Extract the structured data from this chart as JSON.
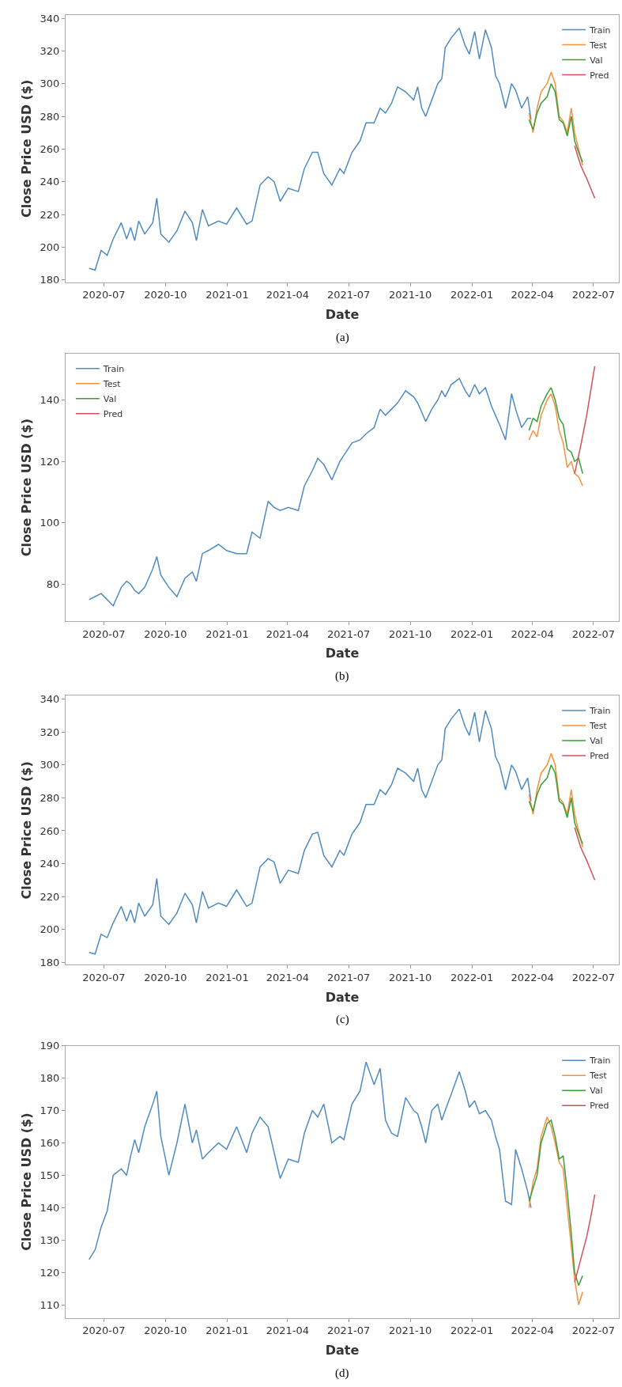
{
  "chart_data": [
    {
      "type": "line",
      "xlabel": "Date",
      "ylabel": "Close Price USD ($)",
      "annotations": [
        "(a)"
      ],
      "legend": "top right",
      "grid": false,
      "xlim": [
        "2020-05-05",
        "2022-08-08"
      ],
      "xticks": [
        {
          "value": "2020-07-01",
          "label": "2020-07"
        },
        {
          "value": "2020-10-01",
          "label": "2020-10"
        },
        {
          "value": "2021-01-01",
          "label": "2021-01"
        },
        {
          "value": "2021-04-01",
          "label": "2021-04"
        },
        {
          "value": "2021-07-01",
          "label": "2021-07"
        },
        {
          "value": "2021-10-01",
          "label": "2021-10"
        },
        {
          "value": "2022-01-01",
          "label": "2022-01"
        },
        {
          "value": "2022-04-01",
          "label": "2022-04"
        },
        {
          "value": "2022-07-01",
          "label": "2022-07"
        }
      ],
      "ylim": [
        178.5,
        342
      ],
      "yticks": [
        180,
        200,
        220,
        240,
        260,
        280,
        300,
        320,
        340
      ],
      "series": [
        {
          "name": "Train",
          "color": "#4f8bbf",
          "x": [
            "2020-06-09",
            "2020-06-18",
            "2020-06-27",
            "2020-07-06",
            "2020-07-15",
            "2020-07-27",
            "2020-08-04",
            "2020-08-10",
            "2020-08-16",
            "2020-08-22",
            "2020-08-31",
            "2020-09-12",
            "2020-09-18",
            "2020-09-24",
            "2020-10-06",
            "2020-10-18",
            "2020-10-30",
            "2020-11-10",
            "2020-11-16",
            "2020-11-25",
            "2020-12-04",
            "2020-12-19",
            "2020-12-31",
            "2021-01-15",
            "2021-01-30",
            "2021-02-07",
            "2021-02-19",
            "2021-03-03",
            "2021-03-12",
            "2021-03-21",
            "2021-04-02",
            "2021-04-17",
            "2021-04-26",
            "2021-05-08",
            "2021-05-16",
            "2021-05-25",
            "2021-06-06",
            "2021-06-18",
            "2021-06-24",
            "2021-07-06",
            "2021-07-18",
            "2021-07-27",
            "2021-08-08",
            "2021-08-17",
            "2021-08-25",
            "2021-09-03",
            "2021-09-12",
            "2021-09-24",
            "2021-10-06",
            "2021-10-12",
            "2021-10-18",
            "2021-10-24",
            "2021-11-02",
            "2021-11-11",
            "2021-11-17",
            "2021-11-22",
            "2021-12-01",
            "2021-12-13",
            "2021-12-22",
            "2021-12-28",
            "2022-01-05",
            "2022-01-12",
            "2022-01-21",
            "2022-01-30",
            "2022-02-05",
            "2022-02-11",
            "2022-02-20",
            "2022-03-01",
            "2022-03-07",
            "2022-03-16",
            "2022-03-25",
            "2022-03-30"
          ],
          "values": [
            187,
            186,
            198,
            195,
            205,
            215,
            205,
            212,
            204,
            216,
            208,
            215,
            230,
            208,
            203,
            210,
            222,
            215,
            204,
            223,
            213,
            216,
            214,
            224,
            214,
            216,
            238,
            243,
            240,
            228,
            236,
            234,
            248,
            258,
            258,
            245,
            238,
            248,
            245,
            258,
            265,
            276,
            276,
            285,
            282,
            288,
            298,
            295,
            290,
            298,
            285,
            280,
            290,
            300,
            303,
            322,
            328,
            334,
            323,
            318,
            332,
            315,
            333,
            322,
            305,
            300,
            285,
            300,
            296,
            285,
            292,
            278
          ]
        },
        {
          "name": "Test",
          "color": "#f5923e",
          "x": [
            "2022-03-27",
            "2022-04-02",
            "2022-04-08",
            "2022-04-14",
            "2022-04-23",
            "2022-04-29",
            "2022-05-05",
            "2022-05-11",
            "2022-05-17",
            "2022-05-23",
            "2022-05-29",
            "2022-06-03",
            "2022-06-09",
            "2022-06-15"
          ],
          "values": [
            282,
            270,
            285,
            295,
            300,
            307,
            300,
            280,
            277,
            270,
            285,
            270,
            260,
            250
          ]
        },
        {
          "name": "Val",
          "color": "#3a9e3a",
          "x": [
            "2022-03-27",
            "2022-04-02",
            "2022-04-08",
            "2022-04-14",
            "2022-04-23",
            "2022-04-29",
            "2022-05-05",
            "2022-05-11",
            "2022-05-17",
            "2022-05-23",
            "2022-05-29",
            "2022-06-03",
            "2022-06-09",
            "2022-06-15"
          ],
          "values": [
            278,
            272,
            282,
            288,
            292,
            300,
            295,
            278,
            276,
            268,
            280,
            265,
            258,
            252
          ]
        },
        {
          "name": "Pred",
          "color": "#d0525a",
          "x": [
            "2022-06-03",
            "2022-06-12",
            "2022-06-21",
            "2022-06-27",
            "2022-07-03"
          ],
          "values": [
            262,
            250,
            242,
            236,
            230
          ]
        }
      ]
    },
    {
      "type": "line",
      "xlabel": "Date",
      "ylabel": "Close Price USD ($)",
      "annotations": [
        "(b)"
      ],
      "legend": "top left",
      "grid": false,
      "xlim": [
        "2020-05-05",
        "2022-08-08"
      ],
      "xticks": [
        {
          "value": "2020-07-01",
          "label": "2020-07"
        },
        {
          "value": "2020-10-01",
          "label": "2020-10"
        },
        {
          "value": "2021-01-01",
          "label": "2021-01"
        },
        {
          "value": "2021-04-01",
          "label": "2021-04"
        },
        {
          "value": "2021-07-01",
          "label": "2021-07"
        },
        {
          "value": "2021-10-01",
          "label": "2021-10"
        },
        {
          "value": "2022-01-01",
          "label": "2022-01"
        },
        {
          "value": "2022-04-01",
          "label": "2022-04"
        },
        {
          "value": "2022-07-01",
          "label": "2022-07"
        }
      ],
      "ylim": [
        68,
        155
      ],
      "yticks": [
        80,
        100,
        120,
        140
      ],
      "series": [
        {
          "name": "Train",
          "color": "#4f8bbf",
          "x": [
            "2020-06-09",
            "2020-06-18",
            "2020-06-27",
            "2020-07-06",
            "2020-07-15",
            "2020-07-27",
            "2020-08-04",
            "2020-08-10",
            "2020-08-16",
            "2020-08-22",
            "2020-08-31",
            "2020-09-12",
            "2020-09-18",
            "2020-09-24",
            "2020-10-06",
            "2020-10-18",
            "2020-10-30",
            "2020-11-10",
            "2020-11-16",
            "2020-11-25",
            "2020-12-04",
            "2020-12-19",
            "2020-12-31",
            "2021-01-15",
            "2021-01-30",
            "2021-02-07",
            "2021-02-19",
            "2021-03-03",
            "2021-03-12",
            "2021-03-21",
            "2021-04-02",
            "2021-04-17",
            "2021-04-26",
            "2021-05-08",
            "2021-05-16",
            "2021-05-25",
            "2021-06-06",
            "2021-06-18",
            "2021-06-24",
            "2021-07-06",
            "2021-07-18",
            "2021-07-27",
            "2021-08-08",
            "2021-08-17",
            "2021-08-25",
            "2021-09-03",
            "2021-09-12",
            "2021-09-24",
            "2021-10-06",
            "2021-10-12",
            "2021-10-18",
            "2021-10-24",
            "2021-11-02",
            "2021-11-11",
            "2021-11-17",
            "2021-11-22",
            "2021-12-01",
            "2021-12-13",
            "2021-12-22",
            "2021-12-28",
            "2022-01-05",
            "2022-01-12",
            "2022-01-21",
            "2022-01-30",
            "2022-02-05",
            "2022-02-11",
            "2022-02-20",
            "2022-03-01",
            "2022-03-07",
            "2022-03-16",
            "2022-03-25",
            "2022-03-30"
          ],
          "values": [
            75,
            76,
            77,
            75,
            73,
            79,
            81,
            80,
            78,
            77,
            79,
            85,
            89,
            83,
            79,
            76,
            82,
            84,
            81,
            90,
            91,
            93,
            91,
            90,
            90,
            97,
            95,
            107,
            105,
            104,
            105,
            104,
            112,
            117,
            121,
            119,
            114,
            120,
            122,
            126,
            127,
            129,
            131,
            137,
            135,
            137,
            139,
            143,
            141,
            139,
            136,
            133,
            137,
            140,
            143,
            141,
            145,
            147,
            143,
            141,
            145,
            142,
            144,
            138,
            135,
            132,
            127,
            142,
            137,
            131,
            134,
            134
          ]
        },
        {
          "name": "Test",
          "color": "#f5923e",
          "x": [
            "2022-03-27",
            "2022-04-02",
            "2022-04-08",
            "2022-04-14",
            "2022-04-23",
            "2022-04-29",
            "2022-05-05",
            "2022-05-11",
            "2022-05-17",
            "2022-05-23",
            "2022-05-29",
            "2022-06-03",
            "2022-06-09",
            "2022-06-15"
          ],
          "values": [
            127,
            130,
            128,
            135,
            140,
            142,
            138,
            130,
            126,
            118,
            120,
            116,
            115,
            112
          ]
        },
        {
          "name": "Val",
          "color": "#3a9e3a",
          "x": [
            "2022-03-27",
            "2022-04-02",
            "2022-04-08",
            "2022-04-14",
            "2022-04-23",
            "2022-04-29",
            "2022-05-05",
            "2022-05-11",
            "2022-05-17",
            "2022-05-23",
            "2022-05-29",
            "2022-06-03",
            "2022-06-09",
            "2022-06-15"
          ],
          "values": [
            130,
            134,
            133,
            138,
            142,
            144,
            140,
            134,
            132,
            124,
            123,
            120,
            121,
            116
          ]
        },
        {
          "name": "Pred",
          "color": "#d0525a",
          "x": [
            "2022-06-03",
            "2022-06-12",
            "2022-06-21",
            "2022-06-27",
            "2022-07-03"
          ],
          "values": [
            116,
            125,
            135,
            143,
            151
          ]
        }
      ]
    },
    {
      "type": "line",
      "xlabel": "Date",
      "ylabel": "Close Price USD ($)",
      "annotations": [
        "(c)"
      ],
      "legend": "top right",
      "grid": false,
      "xlim": [
        "2020-05-05",
        "2022-08-08"
      ],
      "xticks": [
        {
          "value": "2020-07-01",
          "label": "2020-07"
        },
        {
          "value": "2020-10-01",
          "label": "2020-10"
        },
        {
          "value": "2021-01-01",
          "label": "2021-01"
        },
        {
          "value": "2021-04-01",
          "label": "2021-04"
        },
        {
          "value": "2021-07-01",
          "label": "2021-07"
        },
        {
          "value": "2021-10-01",
          "label": "2021-10"
        },
        {
          "value": "2022-01-01",
          "label": "2022-01"
        },
        {
          "value": "2022-04-01",
          "label": "2022-04"
        },
        {
          "value": "2022-07-01",
          "label": "2022-07"
        }
      ],
      "ylim": [
        178.5,
        342
      ],
      "yticks": [
        180,
        200,
        220,
        240,
        260,
        280,
        300,
        320,
        340
      ],
      "series": [
        {
          "name": "Train",
          "color": "#4f8bbf",
          "x": [
            "2020-06-09",
            "2020-06-18",
            "2020-06-27",
            "2020-07-06",
            "2020-07-15",
            "2020-07-27",
            "2020-08-04",
            "2020-08-10",
            "2020-08-16",
            "2020-08-22",
            "2020-08-31",
            "2020-09-12",
            "2020-09-18",
            "2020-09-24",
            "2020-10-06",
            "2020-10-18",
            "2020-10-30",
            "2020-11-10",
            "2020-11-16",
            "2020-11-25",
            "2020-12-04",
            "2020-12-19",
            "2020-12-31",
            "2021-01-15",
            "2021-01-30",
            "2021-02-07",
            "2021-02-19",
            "2021-03-03",
            "2021-03-12",
            "2021-03-21",
            "2021-04-02",
            "2021-04-17",
            "2021-04-26",
            "2021-05-08",
            "2021-05-16",
            "2021-05-25",
            "2021-06-06",
            "2021-06-18",
            "2021-06-24",
            "2021-07-06",
            "2021-07-18",
            "2021-07-27",
            "2021-08-08",
            "2021-08-17",
            "2021-08-25",
            "2021-09-03",
            "2021-09-12",
            "2021-09-24",
            "2021-10-06",
            "2021-10-12",
            "2021-10-18",
            "2021-10-24",
            "2021-11-02",
            "2021-11-11",
            "2021-11-17",
            "2021-11-22",
            "2021-12-01",
            "2021-12-13",
            "2021-12-22",
            "2021-12-28",
            "2022-01-05",
            "2022-01-12",
            "2022-01-21",
            "2022-01-30",
            "2022-02-05",
            "2022-02-11",
            "2022-02-20",
            "2022-03-01",
            "2022-03-07",
            "2022-03-16",
            "2022-03-25",
            "2022-03-30"
          ],
          "values": [
            186,
            185,
            197,
            195,
            204,
            214,
            205,
            212,
            204,
            216,
            208,
            215,
            231,
            208,
            203,
            210,
            222,
            215,
            204,
            223,
            213,
            216,
            214,
            224,
            214,
            216,
            238,
            243,
            241,
            228,
            236,
            234,
            248,
            258,
            259,
            245,
            238,
            248,
            245,
            258,
            265,
            276,
            276,
            285,
            282,
            288,
            298,
            295,
            290,
            298,
            285,
            280,
            290,
            300,
            303,
            322,
            328,
            334,
            323,
            318,
            332,
            314,
            333,
            322,
            305,
            300,
            285,
            300,
            296,
            285,
            292,
            278
          ]
        },
        {
          "name": "Test",
          "color": "#f5923e",
          "x": [
            "2022-03-27",
            "2022-04-02",
            "2022-04-08",
            "2022-04-14",
            "2022-04-23",
            "2022-04-29",
            "2022-05-05",
            "2022-05-11",
            "2022-05-17",
            "2022-05-23",
            "2022-05-29",
            "2022-06-03",
            "2022-06-09",
            "2022-06-15"
          ],
          "values": [
            282,
            270,
            285,
            295,
            300,
            307,
            300,
            280,
            277,
            270,
            285,
            270,
            260,
            250
          ]
        },
        {
          "name": "Val",
          "color": "#3a9e3a",
          "x": [
            "2022-03-27",
            "2022-04-02",
            "2022-04-08",
            "2022-04-14",
            "2022-04-23",
            "2022-04-29",
            "2022-05-05",
            "2022-05-11",
            "2022-05-17",
            "2022-05-23",
            "2022-05-29",
            "2022-06-03",
            "2022-06-09",
            "2022-06-15"
          ],
          "values": [
            278,
            272,
            282,
            288,
            292,
            300,
            295,
            278,
            276,
            268,
            280,
            265,
            258,
            252
          ]
        },
        {
          "name": "Pred",
          "color": "#d0525a",
          "x": [
            "2022-06-03",
            "2022-06-12",
            "2022-06-21",
            "2022-06-27",
            "2022-07-03"
          ],
          "values": [
            262,
            250,
            242,
            236,
            230
          ]
        }
      ]
    },
    {
      "type": "line",
      "xlabel": "Date",
      "ylabel": "Close Price USD ($)",
      "annotations": [
        "(d)"
      ],
      "legend": "top right",
      "grid": false,
      "xlim": [
        "2020-05-05",
        "2022-08-08"
      ],
      "xticks": [
        {
          "value": "2020-07-01",
          "label": "2020-07"
        },
        {
          "value": "2020-10-01",
          "label": "2020-10"
        },
        {
          "value": "2021-01-01",
          "label": "2021-01"
        },
        {
          "value": "2021-04-01",
          "label": "2021-04"
        },
        {
          "value": "2021-07-01",
          "label": "2021-07"
        },
        {
          "value": "2021-10-01",
          "label": "2021-10"
        },
        {
          "value": "2022-01-01",
          "label": "2022-01"
        },
        {
          "value": "2022-04-01",
          "label": "2022-04"
        },
        {
          "value": "2022-07-01",
          "label": "2022-07"
        }
      ],
      "ylim": [
        106,
        190
      ],
      "yticks": [
        110,
        120,
        130,
        140,
        150,
        160,
        170,
        180,
        190
      ],
      "series": [
        {
          "name": "Train",
          "color": "#4f8bbf",
          "x": [
            "2020-06-09",
            "2020-06-18",
            "2020-06-27",
            "2020-07-06",
            "2020-07-15",
            "2020-07-27",
            "2020-08-04",
            "2020-08-10",
            "2020-08-16",
            "2020-08-22",
            "2020-08-31",
            "2020-09-12",
            "2020-09-18",
            "2020-09-24",
            "2020-10-06",
            "2020-10-18",
            "2020-10-30",
            "2020-11-10",
            "2020-11-16",
            "2020-11-25",
            "2020-12-04",
            "2020-12-19",
            "2020-12-31",
            "2021-01-15",
            "2021-01-30",
            "2021-02-07",
            "2021-02-19",
            "2021-03-03",
            "2021-03-12",
            "2021-03-21",
            "2021-04-02",
            "2021-04-17",
            "2021-04-26",
            "2021-05-08",
            "2021-05-16",
            "2021-05-25",
            "2021-06-06",
            "2021-06-18",
            "2021-06-24",
            "2021-07-06",
            "2021-07-18",
            "2021-07-27",
            "2021-08-08",
            "2021-08-17",
            "2021-08-25",
            "2021-09-03",
            "2021-09-12",
            "2021-09-24",
            "2021-10-06",
            "2021-10-12",
            "2021-10-18",
            "2021-10-24",
            "2021-11-02",
            "2021-11-11",
            "2021-11-17",
            "2021-11-22",
            "2021-12-01",
            "2021-12-13",
            "2021-12-22",
            "2021-12-28",
            "2022-01-05",
            "2022-01-12",
            "2022-01-21",
            "2022-01-30",
            "2022-02-05",
            "2022-02-11",
            "2022-02-20",
            "2022-03-01",
            "2022-03-07",
            "2022-03-16",
            "2022-03-25",
            "2022-03-30"
          ],
          "values": [
            124,
            127,
            134,
            139,
            150,
            152,
            150,
            156,
            161,
            157,
            165,
            172,
            176,
            162,
            150,
            160,
            172,
            160,
            164,
            155,
            157,
            160,
            158,
            165,
            157,
            163,
            168,
            165,
            157,
            149,
            155,
            154,
            163,
            170,
            168,
            172,
            160,
            162,
            161,
            172,
            176,
            185,
            178,
            183,
            167,
            163,
            162,
            174,
            170,
            169,
            165,
            160,
            170,
            172,
            167,
            170,
            175,
            182,
            176,
            171,
            173,
            169,
            170,
            167,
            162,
            158,
            142,
            141,
            158,
            152,
            145,
            140
          ]
        },
        {
          "name": "Test",
          "color": "#f5923e",
          "x": [
            "2022-03-27",
            "2022-04-02",
            "2022-04-08",
            "2022-04-14",
            "2022-04-23",
            "2022-04-29",
            "2022-05-05",
            "2022-05-11",
            "2022-05-17",
            "2022-05-23",
            "2022-05-29",
            "2022-06-03",
            "2022-06-09",
            "2022-06-15"
          ],
          "values": [
            140,
            148,
            152,
            162,
            168,
            165,
            160,
            154,
            152,
            140,
            128,
            118,
            110,
            114
          ]
        },
        {
          "name": "Val",
          "color": "#3a9e3a",
          "x": [
            "2022-03-27",
            "2022-04-02",
            "2022-04-08",
            "2022-04-14",
            "2022-04-23",
            "2022-04-29",
            "2022-05-05",
            "2022-05-11",
            "2022-05-17",
            "2022-05-23",
            "2022-05-29",
            "2022-06-03",
            "2022-06-09",
            "2022-06-15"
          ],
          "values": [
            142,
            146,
            150,
            160,
            166,
            167,
            162,
            155,
            156,
            145,
            132,
            120,
            116,
            119
          ]
        },
        {
          "name": "Pred",
          "color": "#d0525a",
          "x": [
            "2022-06-03",
            "2022-06-12",
            "2022-06-21",
            "2022-06-27",
            "2022-07-03"
          ],
          "values": [
            117,
            124,
            131,
            137,
            144
          ]
        }
      ]
    }
  ]
}
